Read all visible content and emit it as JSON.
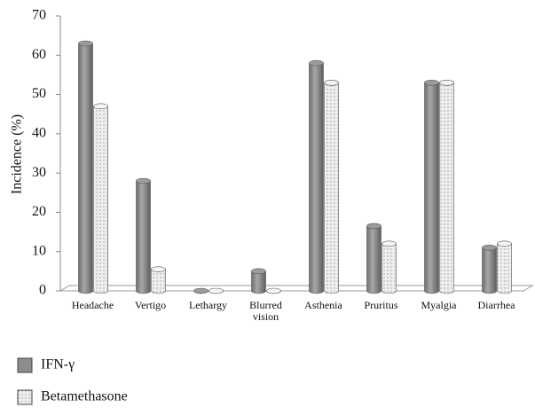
{
  "chart_data": {
    "type": "bar",
    "y_label": "Incidence (%)",
    "categories": [
      "Headache",
      "Vertigo",
      "Lethargy",
      "Blurred vision",
      "Asthenia",
      "Pruritus",
      "Myalgia",
      "Diarrhea"
    ],
    "series": [
      {
        "name": "IFN-γ",
        "color": "#8c8c8c",
        "values": [
          63,
          28,
          0,
          5,
          58,
          16.5,
          53,
          11
        ]
      },
      {
        "name": "Betamethasone",
        "color": "#e6e6e6",
        "values": [
          47,
          5.5,
          0,
          0,
          53,
          12,
          53,
          12
        ]
      }
    ],
    "ylim": [
      0,
      70
    ],
    "yticks": [
      0,
      10,
      20,
      30,
      40,
      50,
      60,
      70
    ],
    "grid": false
  }
}
